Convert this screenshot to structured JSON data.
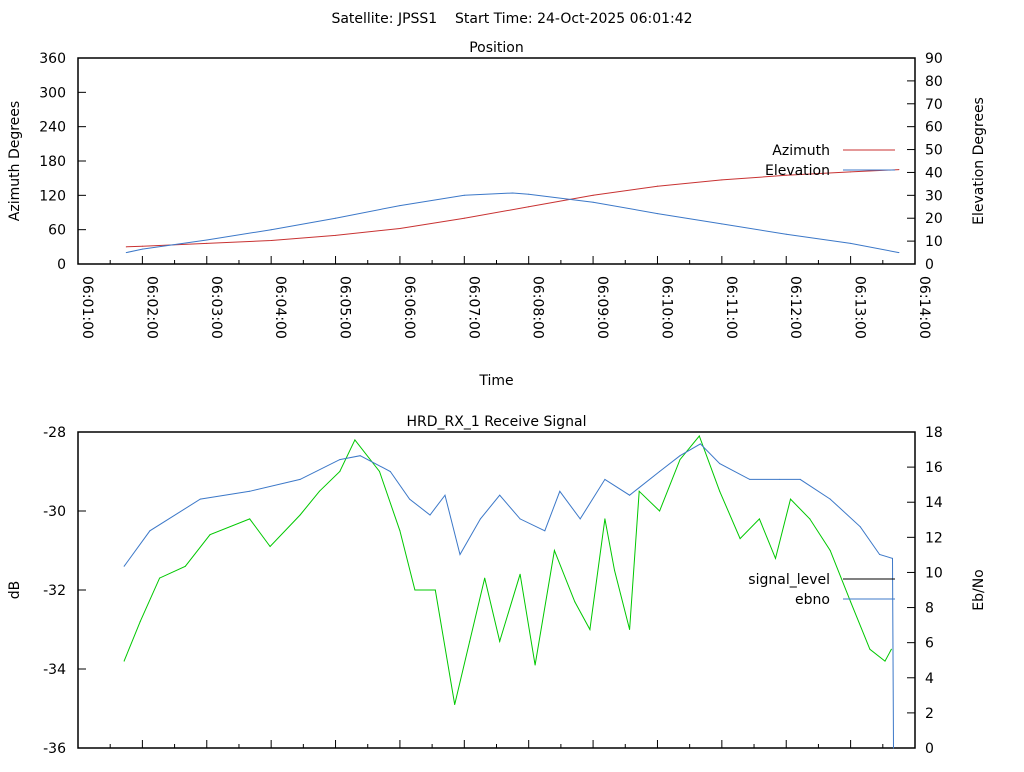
{
  "header": {
    "title": "Satellite: JPSS1    Start Time: 24-Oct-2025 06:01:42"
  },
  "chart_data": [
    {
      "type": "line",
      "title": "Position",
      "xlabel": "Time",
      "ylabel": "Azimuth Degrees",
      "y2label": "Elevation Degrees",
      "xlim": [
        "06:01:00",
        "06:14:00"
      ],
      "xticks": [
        "06:01:00",
        "06:02:00",
        "06:03:00",
        "06:04:00",
        "06:05:00",
        "06:06:00",
        "06:07:00",
        "06:08:00",
        "06:09:00",
        "06:10:00",
        "06:11:00",
        "06:12:00",
        "06:13:00",
        "06:14:00"
      ],
      "ylim": [
        0,
        360
      ],
      "yticks": [
        "0",
        "60",
        "120",
        "180",
        "240",
        "300",
        "360"
      ],
      "y2lim": [
        0,
        90
      ],
      "y2ticks": [
        "0",
        "10",
        "20",
        "30",
        "40",
        "50",
        "60",
        "70",
        "80",
        "90"
      ],
      "grid": false,
      "legend": "right",
      "series": [
        {
          "name": "Azimuth",
          "axis": "y",
          "color": "#c83232",
          "x": [
            "06:01:45",
            "06:02:00",
            "06:03:00",
            "06:04:00",
            "06:05:00",
            "06:06:00",
            "06:07:00",
            "06:08:00",
            "06:09:00",
            "06:10:00",
            "06:11:00",
            "06:12:00",
            "06:13:00",
            "06:13:45"
          ],
          "values": [
            30,
            31,
            36,
            41,
            50,
            62,
            80,
            100,
            120,
            136,
            147,
            155,
            161,
            165
          ]
        },
        {
          "name": "Elevation",
          "axis": "y2",
          "color": "#3c78c8",
          "x": [
            "06:01:45",
            "06:02:00",
            "06:03:00",
            "06:04:00",
            "06:05:00",
            "06:06:00",
            "06:07:00",
            "06:07:45",
            "06:08:00",
            "06:09:00",
            "06:10:00",
            "06:11:00",
            "06:12:00",
            "06:13:00",
            "06:13:45"
          ],
          "values": [
            5,
            6.5,
            10.5,
            15,
            20,
            25.5,
            30,
            31,
            30.5,
            27,
            22,
            17.5,
            13,
            9,
            5
          ]
        }
      ]
    },
    {
      "type": "line",
      "title": "HRD_RX_1 Receive Signal",
      "ylabel": "dB",
      "y2label": "Eb/No",
      "xlim": [
        "06:01:00",
        "06:14:00"
      ],
      "ylim": [
        -36,
        -28
      ],
      "yticks": [
        "-36",
        "-34",
        "-32",
        "-30",
        "-28"
      ],
      "y2lim": [
        0,
        18
      ],
      "y2ticks": [
        "0",
        "2",
        "4",
        "6",
        "8",
        "10",
        "12",
        "14",
        "16",
        "18"
      ],
      "grid": false,
      "legend": "right",
      "legend_entries": [
        {
          "name": "signal_level",
          "color": "#000000"
        },
        {
          "name": "ebno",
          "color": "#3c78c8"
        }
      ],
      "series": [
        {
          "name": "signal_level",
          "color": "#00c800",
          "x": [
            "06:01:43",
            "06:01:58",
            "06:02:16",
            "06:02:40",
            "06:03:03",
            "06:03:40",
            "06:03:59",
            "06:04:27",
            "06:04:45",
            "06:05:04",
            "06:05:18",
            "06:05:41",
            "06:06:00",
            "06:06:14",
            "06:06:33",
            "06:06:51",
            "06:07:05",
            "06:07:19",
            "06:07:33",
            "06:07:52",
            "06:08:06",
            "06:08:24",
            "06:08:43",
            "06:08:57",
            "06:09:11",
            "06:09:20",
            "06:09:34",
            "06:09:43",
            "06:10:02",
            "06:10:21",
            "06:10:39",
            "06:10:58",
            "06:11:17",
            "06:11:35",
            "06:11:50",
            "06:12:04",
            "06:12:22",
            "06:12:41",
            "06:13:00",
            "06:13:18",
            "06:13:32",
            "06:13:38"
          ],
          "values": [
            -33.8,
            -32.8,
            -31.7,
            -31.4,
            -30.6,
            -30.2,
            -30.9,
            -30.1,
            -29.5,
            -29.0,
            -28.2,
            -29.0,
            -30.5,
            -32.0,
            -32.0,
            -34.9,
            -33.3,
            -31.7,
            -33.3,
            -31.6,
            -33.9,
            -31.0,
            -32.3,
            -33.0,
            -30.2,
            -31.5,
            -33.0,
            -29.5,
            -30.0,
            -28.7,
            -28.1,
            -29.5,
            -30.7,
            -30.2,
            -31.2,
            -29.7,
            -30.2,
            -31.0,
            -32.3,
            -33.5,
            -33.8,
            -33.5
          ]
        },
        {
          "name": "ebno",
          "color": "#3c78c8",
          "x": [
            "06:01:43",
            "06:02:07",
            "06:02:54",
            "06:03:40",
            "06:04:27",
            "06:05:04",
            "06:05:23",
            "06:05:51",
            "06:06:09",
            "06:06:28",
            "06:06:42",
            "06:06:56",
            "06:07:15",
            "06:07:33",
            "06:07:52",
            "06:08:15",
            "06:08:29",
            "06:08:48",
            "06:09:11",
            "06:09:34",
            "06:10:02",
            "06:10:21",
            "06:10:40",
            "06:10:58",
            "06:11:26",
            "06:11:54",
            "06:12:13",
            "06:12:41",
            "06:13:09",
            "06:13:27",
            "06:13:39",
            "06:13:40"
          ],
          "values": [
            -31.4,
            -30.5,
            -29.7,
            -29.5,
            -29.2,
            -28.7,
            -28.6,
            -29.0,
            -29.7,
            -30.1,
            -29.6,
            -31.1,
            -30.2,
            -29.6,
            -30.2,
            -30.5,
            -29.5,
            -30.2,
            -29.2,
            -29.6,
            -29.0,
            -28.6,
            -28.3,
            -28.8,
            -29.2,
            -29.2,
            -29.2,
            -29.7,
            -30.4,
            -31.1,
            -31.2,
            -36.0
          ]
        }
      ]
    }
  ]
}
